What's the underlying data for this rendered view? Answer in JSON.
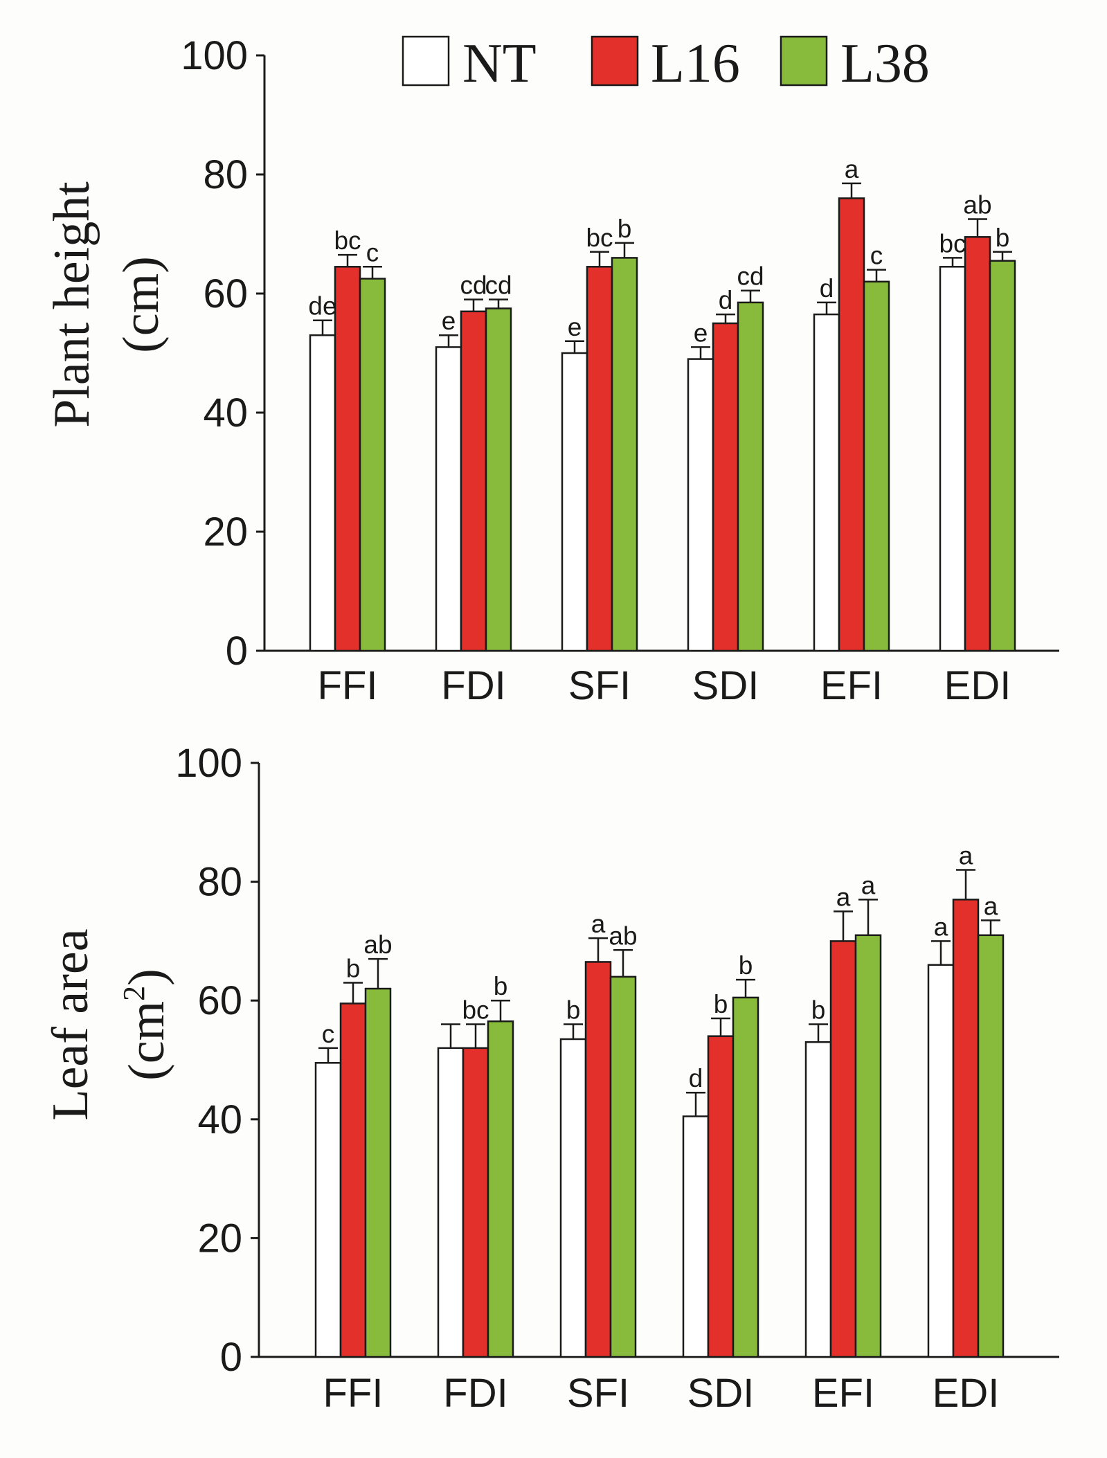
{
  "colors": {
    "NT": "#ffffff",
    "L16": "#e4302b",
    "L38": "#88bb3c"
  },
  "legend": {
    "items": [
      "NT",
      "L16",
      "L38"
    ],
    "placement": "top"
  },
  "chart_data": [
    {
      "type": "bar",
      "title": "",
      "ylabel_line1": "Plant height",
      "ylabel_line2": "(cm)",
      "xlabel": "",
      "ylim": [
        0,
        100
      ],
      "yticks": [
        "0",
        "20",
        "40",
        "60",
        "80",
        "100"
      ],
      "categories": [
        "FFI",
        "FDI",
        "SFI",
        "SDI",
        "EFI",
        "EDI"
      ],
      "series": [
        {
          "name": "NT",
          "values": [
            53,
            51,
            50,
            49,
            56.5,
            64.5
          ],
          "errors": [
            2.5,
            2,
            2,
            2,
            2,
            1.5
          ],
          "labels": [
            "de",
            "e",
            "e",
            "e",
            "d",
            "bc"
          ]
        },
        {
          "name": "L16",
          "values": [
            64.5,
            57,
            64.5,
            55,
            76,
            69.5
          ],
          "errors": [
            2,
            2,
            2.5,
            1.5,
            2.5,
            3
          ],
          "labels": [
            "bc",
            "cd",
            "bc",
            "d",
            "a",
            "ab"
          ]
        },
        {
          "name": "L38",
          "values": [
            62.5,
            57.5,
            66,
            58.5,
            62,
            65.5
          ],
          "errors": [
            2,
            1.5,
            2.5,
            2,
            2,
            1.5
          ],
          "labels": [
            "c",
            "cd",
            "b",
            "cd",
            "c",
            "b"
          ]
        }
      ]
    },
    {
      "type": "bar",
      "title": "",
      "ylabel_line1": "Leaf area",
      "ylabel_line2": "(cm",
      "ylabel_sup": "2",
      "ylabel_tail": ")",
      "xlabel": "",
      "ylim": [
        0,
        100
      ],
      "yticks": [
        "0",
        "20",
        "40",
        "60",
        "80",
        "100"
      ],
      "categories": [
        "FFI",
        "FDI",
        "SFI",
        "SDI",
        "EFI",
        "EDI"
      ],
      "series": [
        {
          "name": "NT",
          "values": [
            49.5,
            52,
            53.5,
            40.5,
            53,
            66
          ],
          "errors": [
            2.5,
            4,
            2.5,
            4,
            3,
            4
          ],
          "labels": [
            "c",
            "",
            "b",
            "d",
            "b",
            "a"
          ]
        },
        {
          "name": "L16",
          "values": [
            59.5,
            52,
            66.5,
            54,
            70,
            77
          ],
          "errors": [
            3.5,
            4,
            4,
            3,
            5,
            5
          ],
          "labels": [
            "b",
            "bc",
            "a",
            "b",
            "a",
            "a"
          ]
        },
        {
          "name": "L38",
          "values": [
            62,
            56.5,
            64,
            60.5,
            71,
            71
          ],
          "errors": [
            5,
            3.5,
            4.5,
            3,
            6,
            2.5
          ],
          "labels": [
            "ab",
            "b",
            "ab",
            "b",
            "a",
            "a"
          ]
        }
      ]
    }
  ]
}
